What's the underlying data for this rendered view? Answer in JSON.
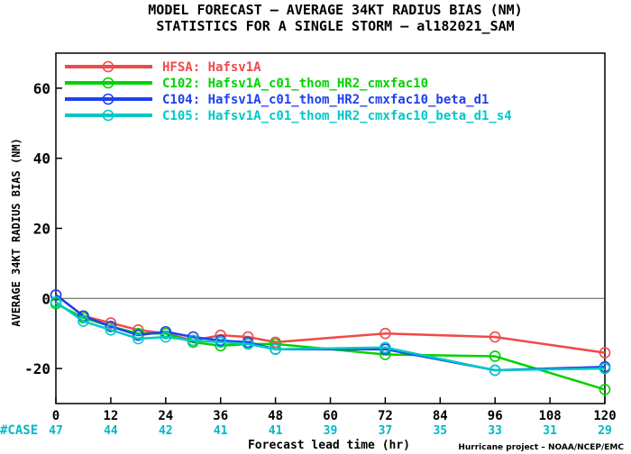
{
  "chart_data": {
    "type": "line",
    "title": "MODEL FORECAST – AVERAGE 34KT RADIUS BIAS (NM)",
    "subtitle": "STATISTICS FOR A SINGLE STORM – al182021_SAM",
    "xlabel": "Forecast lead time (hr)",
    "ylabel": "AVERAGE 34KT RADIUS BIAS (NM)",
    "xlim": [
      0,
      120
    ],
    "ylim": [
      -30,
      70
    ],
    "x_ticks": [
      0,
      12,
      24,
      36,
      48,
      60,
      72,
      84,
      96,
      108,
      120
    ],
    "y_ticks": [
      -20,
      0,
      20,
      40,
      60
    ],
    "grid": false,
    "zero_line": true,
    "legend_position": "top-left",
    "series": [
      {
        "name": "HFSA: Hafsv1A",
        "color": "#f04a4a",
        "x": [
          0,
          6,
          12,
          18,
          24,
          30,
          36,
          42,
          48,
          72,
          96,
          120
        ],
        "y": [
          1,
          -5,
          -7,
          -9,
          -10,
          -12,
          -10.5,
          -11,
          -12.5,
          -10,
          -11,
          -15.5
        ]
      },
      {
        "name": "C102: Hafsv1A_c01_thom_HR2_cmxfac10",
        "color": "#00d200",
        "x": [
          0,
          6,
          12,
          18,
          24,
          30,
          36,
          42,
          48,
          72,
          96,
          120
        ],
        "y": [
          -1.5,
          -5.5,
          -8,
          -10,
          -10,
          -12.5,
          -13.5,
          -13,
          -13,
          -16,
          -16.5,
          -26
        ]
      },
      {
        "name": "C104: Hafsv1A_c01_thom_HR2_cmxfac10_beta_d1",
        "color": "#2040f0",
        "x": [
          0,
          6,
          12,
          18,
          24,
          30,
          36,
          42,
          48,
          72,
          96,
          120
        ],
        "y": [
          1,
          -5,
          -8,
          -10.5,
          -9.5,
          -11,
          -12,
          -12.5,
          -14.5,
          -14.5,
          -20.5,
          -19.5
        ]
      },
      {
        "name": "C105: Hafsv1A_c01_thom_HR2_cmxfac10_beta_d1_s4",
        "color": "#00c8c8",
        "x": [
          0,
          6,
          12,
          18,
          24,
          30,
          36,
          42,
          48,
          72,
          96,
          120
        ],
        "y": [
          -1,
          -6.5,
          -9,
          -11.5,
          -11,
          -12,
          -12.5,
          -13,
          -14.5,
          -14,
          -20.5,
          -20
        ]
      }
    ],
    "case_label": "#CASE",
    "case_x": [
      0,
      12,
      24,
      36,
      48,
      60,
      72,
      84,
      96,
      108,
      120
    ],
    "case_counts": [
      "47",
      "44",
      "42",
      "41",
      "41",
      "39",
      "37",
      "35",
      "33",
      "31",
      "29"
    ]
  },
  "footer": {
    "credit": "Hurricane project – NOAA/NCEP/EMC"
  },
  "colors": {
    "case_text": "#00b8c8",
    "axis": "#000000",
    "zero_line": "#555555"
  }
}
